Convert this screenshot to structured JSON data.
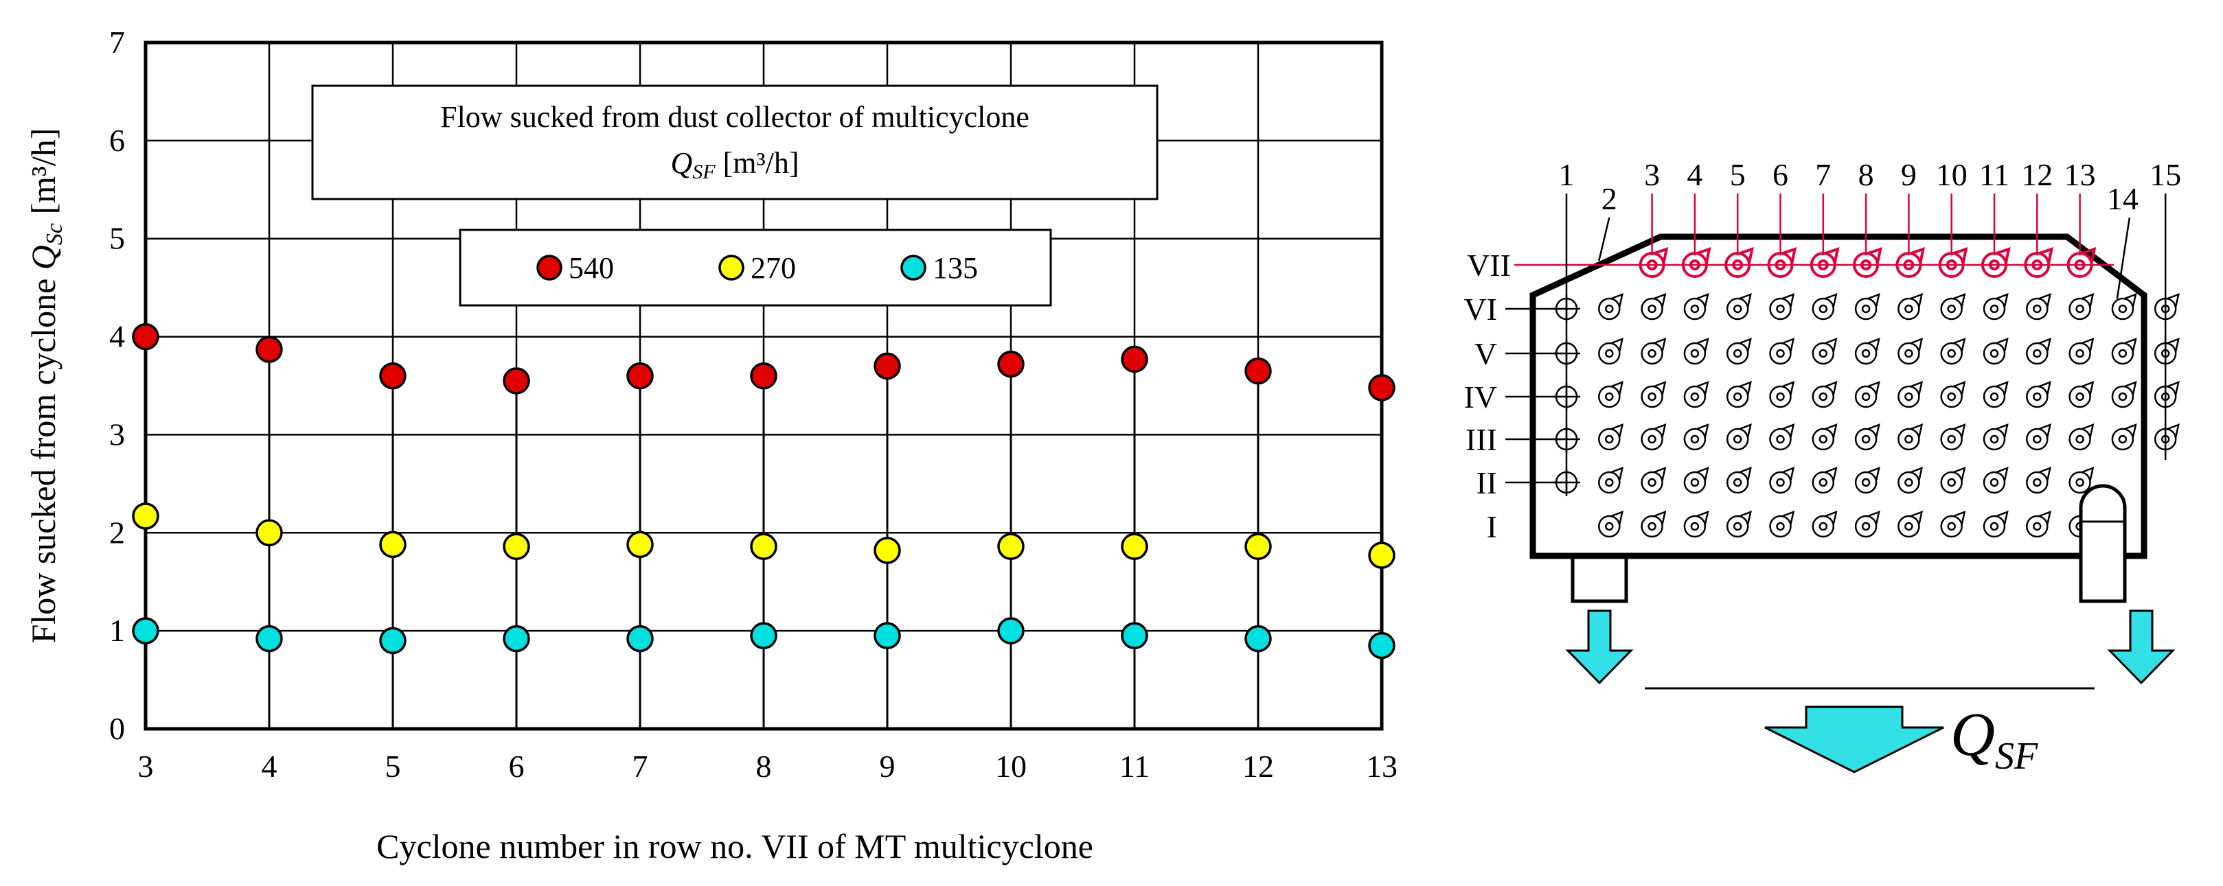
{
  "chart_data": {
    "type": "scatter",
    "xlabel": "Cyclone number in row no. VII of MT multicyclone",
    "ylabel_main": "Flow sucked from cyclone ",
    "ylabel_symbol": "Q",
    "ylabel_sub": "Sc",
    "ylabel_unit": " [m³/h]",
    "x_ticks": [
      "3",
      "4",
      "5",
      "6",
      "7",
      "8",
      "9",
      "10",
      "11",
      "12",
      "13"
    ],
    "y_ticks": [
      "0",
      "1",
      "2",
      "3",
      "4",
      "5",
      "6",
      "7"
    ],
    "xlim": [
      3,
      13
    ],
    "ylim": [
      0,
      7
    ],
    "grid": true,
    "annotation_line1": "Flow sucked from dust collector of multicyclone",
    "annotation_symbol": "Q",
    "annotation_sub": "SF",
    "annotation_unit": " [m³/h]",
    "legend_placement": "top-center",
    "x": [
      3,
      4,
      5,
      6,
      7,
      8,
      9,
      10,
      11,
      12,
      13
    ],
    "series": [
      {
        "name": "540",
        "color": "#e00000",
        "values": [
          4.0,
          3.87,
          3.6,
          3.55,
          3.6,
          3.6,
          3.7,
          3.72,
          3.77,
          3.65,
          3.48
        ]
      },
      {
        "name": "270",
        "color": "#ffff00",
        "values": [
          2.17,
          2.0,
          1.88,
          1.86,
          1.88,
          1.86,
          1.82,
          1.86,
          1.86,
          1.86,
          1.77
        ]
      },
      {
        "name": "135",
        "color": "#00e0e0",
        "values": [
          1.0,
          0.92,
          0.9,
          0.92,
          0.92,
          0.95,
          0.95,
          1.0,
          0.95,
          0.92,
          0.85
        ]
      }
    ]
  },
  "schematic": {
    "column_numbers": [
      "1",
      "2",
      "3",
      "4",
      "5",
      "6",
      "7",
      "8",
      "9",
      "10",
      "11",
      "12",
      "13",
      "14",
      "15"
    ],
    "row_labels": [
      "VII",
      "VI",
      "V",
      "IV",
      "III",
      "II",
      "I"
    ],
    "outlet_symbol": "Q",
    "outlet_sub": "SF",
    "highlight_color": "#e0003c",
    "arrow_color": "#33e0e6"
  }
}
